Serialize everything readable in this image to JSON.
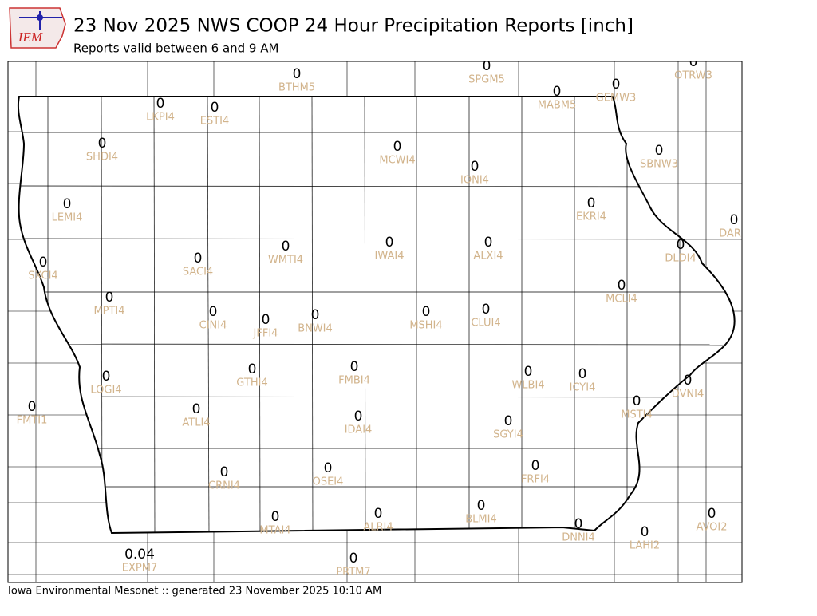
{
  "header": {
    "logo_text": "IEM",
    "title": "23 Nov 2025 NWS COOP 24 Hour Precipitation Reports [inch]",
    "subtitle": "Reports valid between 6 and 9 AM"
  },
  "stations": [
    {
      "id": "BTHM5",
      "value": 0
    },
    {
      "id": "SPGM5",
      "value": 0
    },
    {
      "id": "OTRW3",
      "value": 0
    },
    {
      "id": "MABM5",
      "value": 0
    },
    {
      "id": "GEMW3",
      "value": 0
    },
    {
      "id": "LKPI4",
      "value": 0
    },
    {
      "id": "ESTI4",
      "value": 0
    },
    {
      "id": "SHDI4",
      "value": 0
    },
    {
      "id": "MCWI4",
      "value": 0
    },
    {
      "id": "IONI4",
      "value": 0
    },
    {
      "id": "SBNW3",
      "value": 0
    },
    {
      "id": "LEMI4",
      "value": 0
    },
    {
      "id": "EKRI4",
      "value": 0
    },
    {
      "id": "DAR",
      "value": 0
    },
    {
      "id": "IWAI4",
      "value": 0
    },
    {
      "id": "ALXI4",
      "value": 0
    },
    {
      "id": "DLDI4",
      "value": 0
    },
    {
      "id": "WMTI4",
      "value": 0
    },
    {
      "id": "SACI4",
      "value": 0
    },
    {
      "id": "SXCI4",
      "value": 0
    },
    {
      "id": "MPTI4",
      "value": 0
    },
    {
      "id": "MCLI4",
      "value": 0
    },
    {
      "id": "CINI4",
      "value": 0
    },
    {
      "id": "JFFI4",
      "value": 0
    },
    {
      "id": "BNWI4",
      "value": 0
    },
    {
      "id": "MSHI4",
      "value": 0
    },
    {
      "id": "CLUI4",
      "value": 0
    },
    {
      "id": "LOGI4",
      "value": 0
    },
    {
      "id": "GTHI4",
      "value": 0
    },
    {
      "id": "FMBI4",
      "value": 0
    },
    {
      "id": "WLBI4",
      "value": 0
    },
    {
      "id": "ICYI4",
      "value": 0
    },
    {
      "id": "DVNI4",
      "value": 0
    },
    {
      "id": "FMTI1",
      "value": 0
    },
    {
      "id": "ATLI4",
      "value": 0
    },
    {
      "id": "MSTI4",
      "value": 0
    },
    {
      "id": "IDAI4",
      "value": 0
    },
    {
      "id": "SGYI4",
      "value": 0
    },
    {
      "id": "OSEI4",
      "value": 0
    },
    {
      "id": "FRFI4",
      "value": 0
    },
    {
      "id": "CRNI4",
      "value": 0
    },
    {
      "id": "BLMI4",
      "value": 0
    },
    {
      "id": "ALRI4",
      "value": 0
    },
    {
      "id": "AVOI2",
      "value": 0
    },
    {
      "id": "MTAI4",
      "value": 0
    },
    {
      "id": "DNNI4",
      "value": 0
    },
    {
      "id": "LAHI2",
      "value": 0
    },
    {
      "id": "EXPM7",
      "value": 0.04
    },
    {
      "id": "PRTM7",
      "value": 0
    }
  ],
  "footer": "Iowa Environmental Mesonet :: generated 23 November 2025 10:10 AM"
}
